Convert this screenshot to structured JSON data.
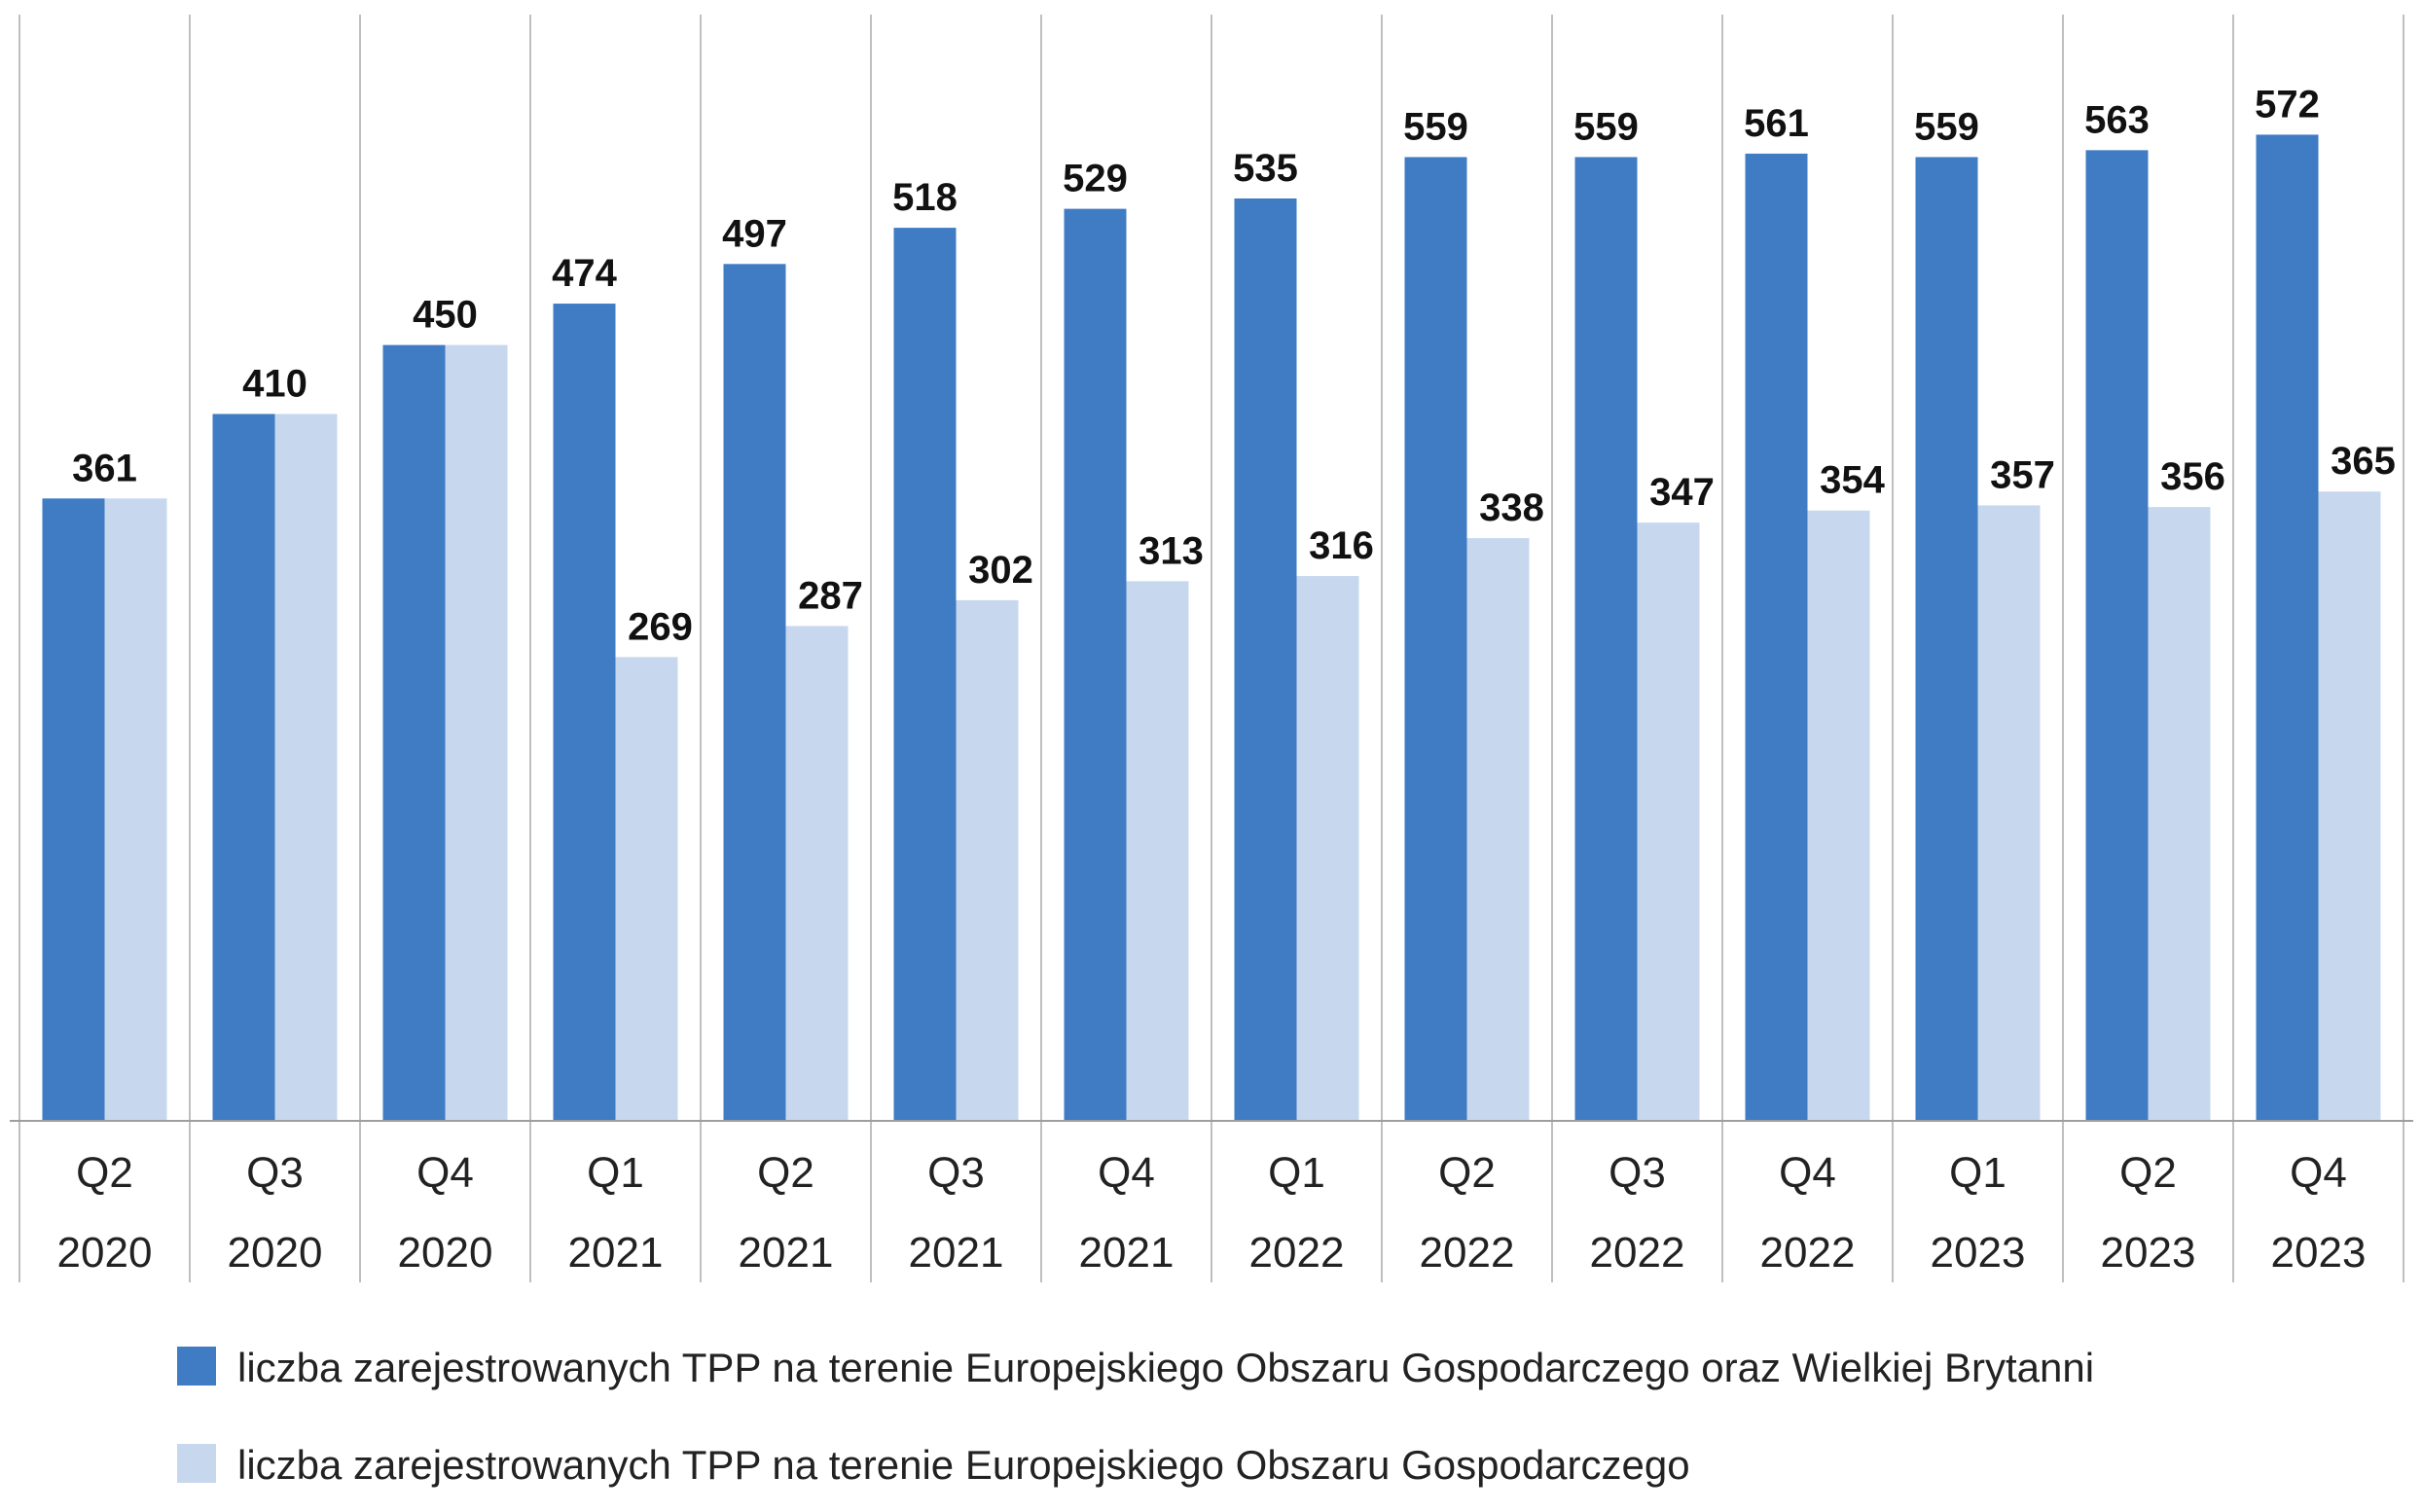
{
  "chart_data": {
    "type": "bar",
    "categories": [
      [
        "Q2",
        "2020"
      ],
      [
        "Q3",
        "2020"
      ],
      [
        "Q4",
        "2020"
      ],
      [
        "Q1",
        "2021"
      ],
      [
        "Q2",
        "2021"
      ],
      [
        "Q3",
        "2021"
      ],
      [
        "Q4",
        "2021"
      ],
      [
        "Q1",
        "2022"
      ],
      [
        "Q2",
        "2022"
      ],
      [
        "Q3",
        "2022"
      ],
      [
        "Q4",
        "2022"
      ],
      [
        "Q1",
        "2023"
      ],
      [
        "Q2",
        "2023"
      ],
      [
        "Q4",
        "2023"
      ]
    ],
    "series": [
      {
        "name": "liczba zarejestrowanych TPP na terenie Europejskiego Obszaru Gospodarczego oraz Wielkiej Brytanni",
        "color": "#3f7cc4",
        "values": [
          361,
          410,
          450,
          474,
          497,
          518,
          529,
          535,
          559,
          559,
          561,
          559,
          563,
          572
        ]
      },
      {
        "name": "liczba zarejestrowanych TPP na terenie Europejskiego Obszaru Gospodarczego",
        "color": "#c7d8ee",
        "values": [
          361,
          410,
          450,
          269,
          287,
          302,
          313,
          316,
          338,
          347,
          354,
          357,
          356,
          365
        ]
      }
    ],
    "data_labels": [
      [
        361,
        410,
        450,
        474,
        497,
        518,
        529,
        535,
        559,
        559,
        561,
        559,
        563,
        572
      ],
      [
        null,
        null,
        null,
        269,
        287,
        302,
        313,
        316,
        338,
        347,
        354,
        357,
        356,
        365
      ]
    ],
    "ylim": [
      0,
      636
    ],
    "grid": false,
    "legend": "bottom",
    "title": "",
    "xlabel": "",
    "ylabel": ""
  }
}
